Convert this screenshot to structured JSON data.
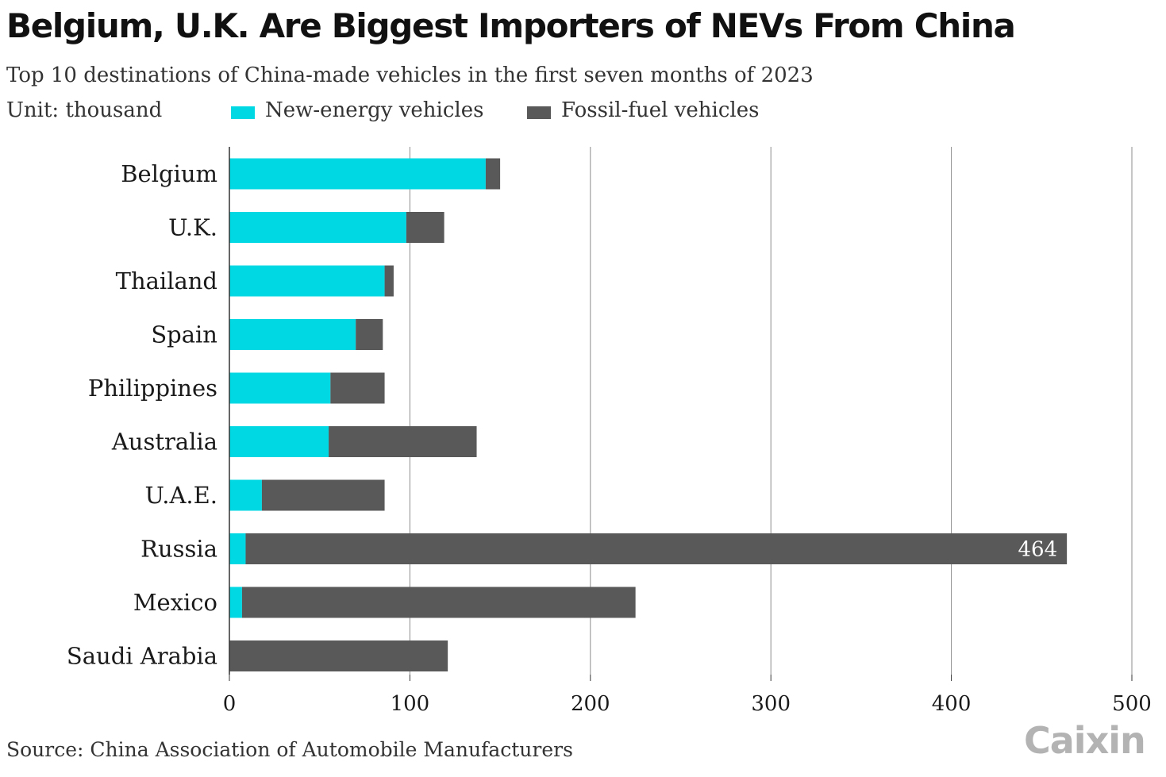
{
  "title": "Belgium, U.K. Are Biggest Importers of NEVs From China",
  "subtitle": "Top 10 destinations of China-made vehicles in the first seven months of 2023",
  "unit_label": "Unit: thousand",
  "source": "Source: China Association of Automobile Manufacturers",
  "logo": "Caixin",
  "colors": {
    "nev": "#00d8e3",
    "fossil": "#595959",
    "grid": "#8c8c8c"
  },
  "legend": [
    {
      "label": "New-energy vehicles",
      "color": "#00d8e3"
    },
    {
      "label": "Fossil-fuel vehicles",
      "color": "#595959"
    }
  ],
  "chart_data": {
    "type": "bar",
    "orientation": "horizontal",
    "stacked": true,
    "categories": [
      "Belgium",
      "U.K.",
      "Thailand",
      "Spain",
      "Philippines",
      "Australia",
      "U.A.E.",
      "Russia",
      "Mexico",
      "Saudi Arabia"
    ],
    "series": [
      {
        "name": "New-energy vehicles",
        "values": [
          142,
          98,
          86,
          70,
          56,
          55,
          18,
          9,
          7,
          0
        ]
      },
      {
        "name": "Fossil-fuel vehicles",
        "values": [
          8,
          21,
          5,
          15,
          30,
          82,
          68,
          455,
          218,
          121
        ]
      }
    ],
    "data_labels": [
      {
        "category": "Russia",
        "text": "464"
      }
    ],
    "xlim": [
      0,
      500
    ],
    "x_ticks": [
      0,
      100,
      200,
      300,
      400,
      500
    ],
    "grid": "vertical",
    "legend_position": "top"
  }
}
